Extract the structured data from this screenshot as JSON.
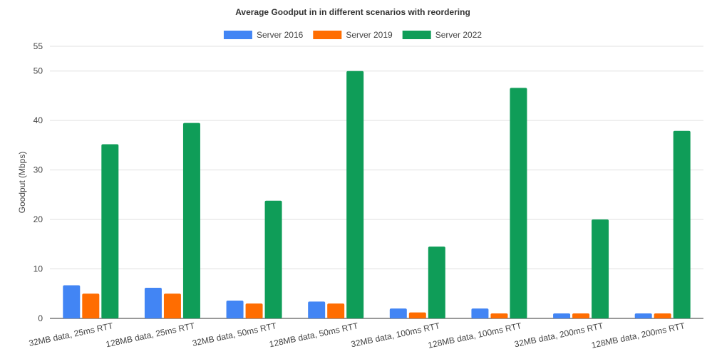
{
  "chart_data": {
    "type": "bar",
    "title": "Average Goodput in in different scenarios with reordering",
    "xlabel": "",
    "ylabel": "Goodput (Mbps)",
    "ylim": [
      0,
      55
    ],
    "yticks": [
      0,
      10,
      20,
      30,
      40,
      50,
      55
    ],
    "grid": true,
    "legend_position": "top",
    "categories": [
      "32MB data, 25ms RTT",
      "128MB data, 25ms RTT",
      "32MB data, 50ms RTT",
      "128MB data, 50ms RTT",
      "32MB data, 100ms RTT",
      "128MB data, 100ms RTT",
      "32MB data, 200ms RTT",
      "128MB data, 200ms RTT"
    ],
    "series": [
      {
        "name": "Server 2016",
        "color": "#4285f4",
        "values": [
          6.7,
          6.2,
          3.6,
          3.4,
          2.0,
          2.0,
          1.0,
          1.0
        ]
      },
      {
        "name": "Server 2019",
        "color": "#ff6d01",
        "values": [
          5.0,
          5.0,
          3.0,
          3.0,
          1.2,
          1.0,
          1.0,
          1.0
        ]
      },
      {
        "name": "Server 2022",
        "color": "#0f9d58",
        "values": [
          35.2,
          39.5,
          23.8,
          50.0,
          14.5,
          46.6,
          20.0,
          37.9
        ]
      }
    ]
  }
}
